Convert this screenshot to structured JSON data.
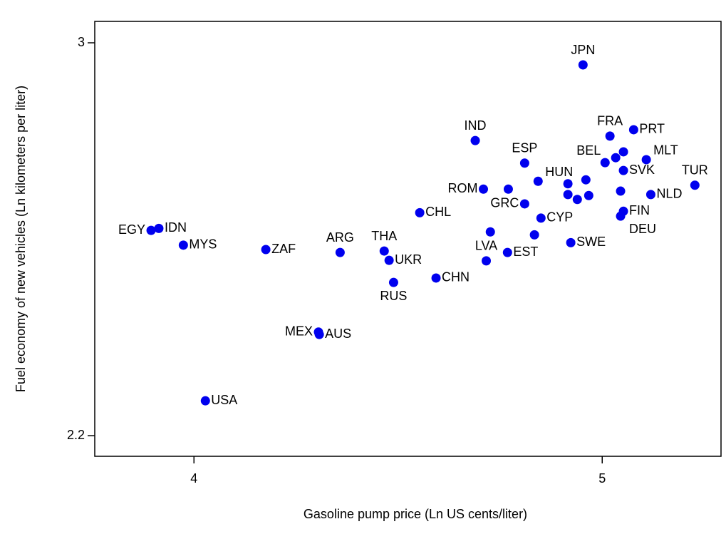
{
  "chart_data": {
    "type": "scatter",
    "x_label": "Gasoline pump price (Ln US cents/liter)",
    "y_label": "Fuel economy of new vehicles (Ln kilometers per liter)",
    "color": "#0000ee",
    "labels": [
      "EGY",
      "IDN",
      "MYS",
      "ZAF",
      "ARG",
      "THA",
      "UKR",
      "RUS",
      "CHL",
      "CHN",
      "MEX",
      "AUS",
      "USA",
      "ROM",
      null,
      "GRC",
      "ESP",
      "HUN",
      "CYP",
      null,
      null,
      "LVA",
      "EST",
      "SWE",
      null,
      null,
      null,
      null,
      null,
      "BEL",
      null,
      "MLT",
      null,
      "SVK",
      null,
      "TUR",
      "NLD",
      "FIN",
      "DEU",
      "JPN",
      "IND",
      "FRA",
      "PRT"
    ],
    "x": [
      3.895,
      3.914,
      3.974,
      4.176,
      4.358,
      4.466,
      4.478,
      4.489,
      4.553,
      4.593,
      4.305,
      4.307,
      4.028,
      4.709,
      4.77,
      4.81,
      4.81,
      4.843,
      4.85,
      4.726,
      4.834,
      4.716,
      4.768,
      4.923,
      4.916,
      4.96,
      4.916,
      4.939,
      4.967,
      5.007,
      5.033,
      5.108,
      5.052,
      5.052,
      5.045,
      5.227,
      5.119,
      5.052,
      5.045,
      4.953,
      4.689,
      5.019,
      5.077
    ],
    "values": [
      2.618,
      2.622,
      2.588,
      2.579,
      2.573,
      2.576,
      2.557,
      2.512,
      2.654,
      2.521,
      2.411,
      2.406,
      2.271,
      2.702,
      2.702,
      2.672,
      2.755,
      2.718,
      2.643,
      2.615,
      2.609,
      2.556,
      2.573,
      2.593,
      2.713,
      2.721,
      2.691,
      2.681,
      2.689,
      2.756,
      2.766,
      2.762,
      2.778,
      2.74,
      2.698,
      2.71,
      2.691,
      2.657,
      2.647,
      2.955,
      2.801,
      2.81,
      2.823
    ],
    "xlim": [
      3.757,
      5.291
    ],
    "ylim": [
      2.158,
      3.0436
    ],
    "xticks": [
      4,
      5
    ],
    "yticks": [
      2.2,
      3
    ],
    "grid": false
  }
}
